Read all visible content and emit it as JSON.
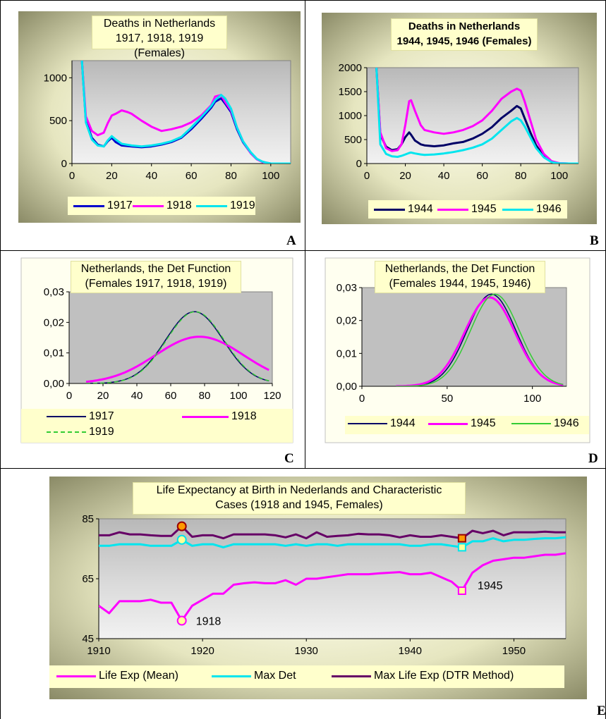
{
  "panels": [
    {
      "label": "A"
    },
    {
      "label": "B"
    },
    {
      "label": "C"
    },
    {
      "label": "D"
    },
    {
      "label": "E"
    }
  ],
  "chart_data": [
    {
      "id": "A",
      "type": "line",
      "title": "Deaths in Netherlands\n1917, 1918, 1919 (Females)",
      "xlim": [
        0,
        110
      ],
      "ylim": [
        0,
        1200
      ],
      "xticks": [
        0,
        20,
        40,
        60,
        80,
        100
      ],
      "yticks": [
        0,
        500,
        1000
      ],
      "series": [
        {
          "name": "1917",
          "color": "#0000cc",
          "width": 3,
          "x": [
            5,
            7,
            10,
            13,
            16,
            18,
            20,
            22,
            25,
            30,
            35,
            40,
            45,
            50,
            55,
            60,
            65,
            70,
            72,
            75,
            77,
            80,
            83,
            86,
            90,
            93,
            96,
            98,
            100,
            105,
            110
          ],
          "y": [
            1200,
            500,
            300,
            220,
            200,
            260,
            300,
            250,
            210,
            200,
            190,
            200,
            220,
            250,
            300,
            400,
            520,
            650,
            720,
            760,
            700,
            600,
            400,
            250,
            120,
            50,
            20,
            8,
            0,
            0,
            0
          ]
        },
        {
          "name": "1918",
          "color": "#ff00ff",
          "width": 3,
          "x": [
            5,
            7,
            10,
            13,
            16,
            18,
            20,
            22,
            25,
            28,
            30,
            35,
            40,
            45,
            50,
            55,
            60,
            65,
            70,
            72,
            75,
            77,
            80,
            83,
            86,
            90,
            93,
            96,
            98,
            100,
            105,
            110
          ],
          "y": [
            1200,
            550,
            380,
            330,
            360,
            470,
            560,
            580,
            620,
            600,
            580,
            500,
            430,
            380,
            400,
            430,
            480,
            560,
            680,
            780,
            800,
            720,
            620,
            420,
            260,
            120,
            50,
            15,
            5,
            0,
            0,
            0
          ]
        },
        {
          "name": "1919",
          "color": "#00e5ee",
          "width": 3,
          "x": [
            5,
            7,
            10,
            13,
            16,
            18,
            20,
            22,
            25,
            30,
            35,
            40,
            45,
            50,
            55,
            60,
            65,
            70,
            72,
            75,
            77,
            80,
            83,
            86,
            90,
            93,
            96,
            98,
            100,
            105,
            110
          ],
          "y": [
            1200,
            480,
            280,
            210,
            200,
            270,
            320,
            280,
            230,
            210,
            200,
            210,
            230,
            260,
            310,
            420,
            540,
            670,
            740,
            800,
            760,
            640,
            420,
            260,
            130,
            55,
            20,
            8,
            0,
            0,
            0
          ]
        }
      ]
    },
    {
      "id": "B",
      "type": "line",
      "title": "Deaths in Netherlands\n1944, 1945, 1946 (Females)",
      "xlim": [
        0,
        110
      ],
      "ylim": [
        0,
        2000
      ],
      "xticks": [
        0,
        20,
        40,
        60,
        80,
        100
      ],
      "yticks": [
        0,
        500,
        1000,
        1500,
        2000
      ],
      "series": [
        {
          "name": "1944",
          "color": "#000066",
          "width": 3,
          "x": [
            5,
            7,
            10,
            13,
            16,
            18,
            20,
            22,
            23,
            25,
            28,
            30,
            35,
            40,
            45,
            50,
            55,
            60,
            65,
            70,
            75,
            78,
            80,
            82,
            85,
            88,
            92,
            96,
            100,
            105,
            110
          ],
          "y": [
            2000,
            600,
            350,
            280,
            300,
            400,
            550,
            650,
            600,
            480,
            400,
            380,
            360,
            380,
            420,
            450,
            520,
            620,
            760,
            950,
            1100,
            1200,
            1150,
            950,
            650,
            380,
            150,
            40,
            5,
            0,
            0
          ]
        },
        {
          "name": "1945",
          "color": "#ff00ff",
          "width": 3,
          "x": [
            5,
            7,
            10,
            13,
            16,
            18,
            20,
            22,
            23,
            25,
            28,
            30,
            35,
            40,
            45,
            50,
            55,
            60,
            65,
            70,
            75,
            78,
            80,
            82,
            85,
            88,
            92,
            96,
            100,
            105,
            110
          ],
          "y": [
            2000,
            650,
            320,
            260,
            280,
            400,
            800,
            1300,
            1320,
            1100,
            800,
            700,
            650,
            620,
            650,
            700,
            780,
            900,
            1100,
            1350,
            1500,
            1560,
            1520,
            1300,
            900,
            500,
            200,
            50,
            8,
            0,
            0
          ]
        },
        {
          "name": "1946",
          "color": "#00e5ee",
          "width": 3,
          "x": [
            5,
            7,
            10,
            13,
            16,
            18,
            20,
            22,
            23,
            25,
            28,
            30,
            35,
            40,
            45,
            50,
            55,
            60,
            65,
            70,
            75,
            78,
            80,
            82,
            85,
            88,
            92,
            96,
            100,
            105,
            110
          ],
          "y": [
            2000,
            400,
            200,
            150,
            140,
            160,
            190,
            220,
            230,
            210,
            190,
            180,
            190,
            210,
            240,
            280,
            330,
            400,
            520,
            700,
            880,
            950,
            900,
            780,
            550,
            320,
            130,
            30,
            3,
            0,
            0
          ]
        }
      ]
    },
    {
      "id": "C",
      "type": "line",
      "title": "Netherlands, the Det Function\n(Females 1917, 1918, 1919)",
      "xlim": [
        0,
        120
      ],
      "ylim": [
        0,
        0.03
      ],
      "xticks": [
        0,
        20,
        40,
        60,
        80,
        100,
        120
      ],
      "yticks": [
        "0,00",
        "0,01",
        "0,02",
        "0,03"
      ],
      "series": [
        {
          "name": "1917",
          "color": "#000066",
          "width": 1.5,
          "dash": "",
          "mean": 74,
          "sd": 17,
          "peak": 0.0235
        },
        {
          "name": "1918",
          "color": "#ff00ff",
          "width": 3,
          "dash": "",
          "mean": 77,
          "sd": 26,
          "peak": 0.0153
        },
        {
          "name": "1919",
          "color": "#33cc33",
          "width": 1.5,
          "dash": "6,4",
          "mean": 74.5,
          "sd": 17,
          "peak": 0.0235
        }
      ]
    },
    {
      "id": "D",
      "type": "line",
      "title": "Netherlands, the Det Function\n(Females 1944, 1945, 1946)",
      "xlim": [
        0,
        120
      ],
      "ylim": [
        0,
        0.03
      ],
      "xticks": [
        0,
        50,
        100
      ],
      "yticks": [
        "0,00",
        "0,01",
        "0,02",
        "0,03"
      ],
      "series": [
        {
          "name": "1944",
          "color": "#000066",
          "width": 1.5,
          "dash": "",
          "mean": 76,
          "sd": 14.3,
          "peak": 0.028
        },
        {
          "name": "1945",
          "color": "#ff00ff",
          "width": 3,
          "dash": "",
          "mean": 75,
          "sd": 14.8,
          "peak": 0.027
        },
        {
          "name": "1946",
          "color": "#33cc33",
          "width": 1.5,
          "dash": "",
          "mean": 78,
          "sd": 14.3,
          "peak": 0.028
        }
      ]
    },
    {
      "id": "E",
      "type": "line",
      "title": "Life Expectancy at Birth in Nederlands and Characteristic\nCases (1918 and 1945, Females)",
      "xlim": [
        1910,
        1955
      ],
      "ylim": [
        45,
        85
      ],
      "xticks": [
        1910,
        1920,
        1930,
        1940,
        1950
      ],
      "yticks": [
        45,
        65,
        85
      ],
      "series": [
        {
          "name": "Life Exp (Mean)",
          "color": "#ff00ff",
          "width": 3,
          "x": [
            1910,
            1911,
            1912,
            1913,
            1914,
            1915,
            1916,
            1917,
            1918,
            1919,
            1920,
            1921,
            1922,
            1923,
            1924,
            1925,
            1926,
            1927,
            1928,
            1929,
            1930,
            1931,
            1932,
            1933,
            1934,
            1935,
            1936,
            1937,
            1938,
            1939,
            1940,
            1941,
            1942,
            1943,
            1944,
            1945,
            1946,
            1947,
            1948,
            1949,
            1950,
            1951,
            1952,
            1953,
            1954,
            1955
          ],
          "y": [
            56,
            53.5,
            57.5,
            57.5,
            57.5,
            58,
            57,
            57,
            51,
            56,
            58,
            60,
            60,
            63,
            63.5,
            63.8,
            63.5,
            63.5,
            64.5,
            63,
            65,
            65,
            65.5,
            66,
            66.5,
            66.5,
            66.5,
            66.8,
            67,
            67.2,
            66.5,
            66.5,
            67,
            65.5,
            64,
            61,
            67,
            69.5,
            71,
            71.5,
            72,
            72,
            72.5,
            73,
            73,
            73.5
          ]
        },
        {
          "name": "Max Det",
          "color": "#00e5ee",
          "width": 3,
          "x": [
            1910,
            1911,
            1912,
            1913,
            1914,
            1915,
            1916,
            1917,
            1918,
            1919,
            1920,
            1921,
            1922,
            1923,
            1924,
            1925,
            1926,
            1927,
            1928,
            1929,
            1930,
            1931,
            1932,
            1933,
            1934,
            1935,
            1936,
            1937,
            1938,
            1939,
            1940,
            1941,
            1942,
            1943,
            1944,
            1945,
            1946,
            1947,
            1948,
            1949,
            1950,
            1951,
            1952,
            1953,
            1954,
            1955
          ],
          "y": [
            76,
            76,
            76.5,
            76.5,
            76.5,
            76,
            76,
            76,
            78,
            76,
            76.5,
            76.5,
            75.5,
            76.5,
            76.5,
            76.5,
            76.5,
            76.5,
            76,
            76.5,
            76,
            76.5,
            76.5,
            76,
            76.5,
            76.5,
            76.5,
            76.5,
            76.5,
            76.5,
            76,
            76,
            76.5,
            76.5,
            76,
            75.5,
            77.5,
            77.5,
            78.5,
            77.5,
            78,
            78,
            78.3,
            78.5,
            78.5,
            78.8
          ]
        },
        {
          "name": "Max Life Exp (DTR Method)",
          "color": "#660066",
          "width": 3,
          "x": [
            1910,
            1911,
            1912,
            1913,
            1914,
            1915,
            1916,
            1917,
            1918,
            1919,
            1920,
            1921,
            1922,
            1923,
            1924,
            1925,
            1926,
            1927,
            1928,
            1929,
            1930,
            1931,
            1932,
            1933,
            1934,
            1935,
            1936,
            1937,
            1938,
            1939,
            1940,
            1941,
            1942,
            1943,
            1944,
            1945,
            1946,
            1947,
            1948,
            1949,
            1950,
            1951,
            1952,
            1953,
            1954,
            1955
          ],
          "y": [
            79.5,
            79.5,
            80.5,
            79.8,
            79.8,
            79.5,
            79.3,
            79.3,
            82.5,
            79,
            79.5,
            79.5,
            78.5,
            79.8,
            79.8,
            79.8,
            79.8,
            79.5,
            78.8,
            79.8,
            78.5,
            80.5,
            79,
            79.3,
            79.5,
            80,
            79.8,
            79.8,
            79.5,
            78.8,
            79.5,
            79,
            79,
            79.5,
            79,
            78.5,
            81,
            80.2,
            81,
            79.5,
            80.5,
            80.5,
            80.5,
            80.7,
            80.5,
            80.5
          ]
        }
      ],
      "annotations": [
        {
          "text": "1918",
          "x": 1918,
          "y": 51
        },
        {
          "text": "1945",
          "x": 1945,
          "y": 61
        }
      ]
    }
  ]
}
